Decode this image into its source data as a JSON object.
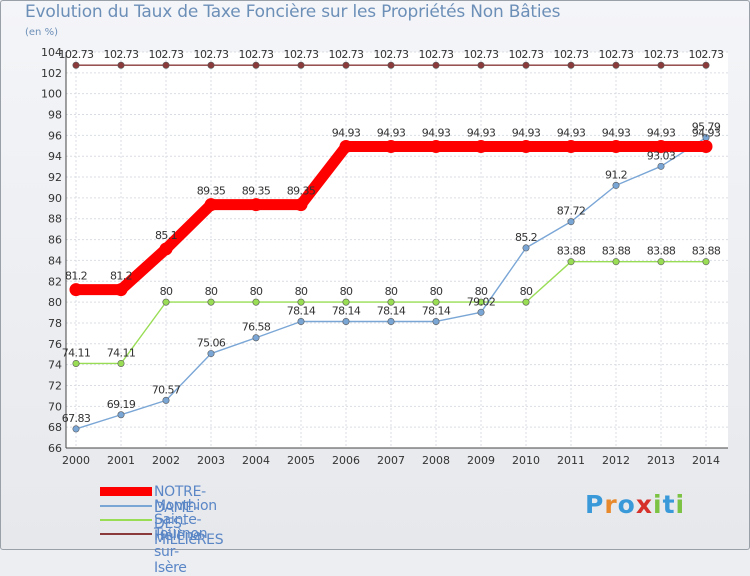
{
  "chart_data": {
    "type": "line",
    "title": "Evolution du Taux de Taxe Foncière sur les Propriétés Non Bâties",
    "subtitle": "(en %)",
    "xlabel": "",
    "ylabel": "",
    "categories": [
      "2000",
      "2001",
      "2002",
      "2003",
      "2004",
      "2005",
      "2006",
      "2007",
      "2008",
      "2009",
      "2010",
      "2011",
      "2012",
      "2013",
      "2014"
    ],
    "ylim": [
      66,
      104
    ],
    "ytick_step": 2,
    "grid": true,
    "legend_position": "bottom-left",
    "series": [
      {
        "name": "NOTRE-DAME-DES-MILLIèRES",
        "color": "#ff0000",
        "values": [
          81.2,
          81.2,
          85.1,
          89.35,
          89.35,
          89.35,
          94.93,
          94.93,
          94.93,
          94.93,
          94.93,
          94.93,
          94.93,
          94.93,
          94.93
        ],
        "labels": [
          "81.2",
          "81.2",
          "85.1",
          "89.35",
          "89.35",
          "89.35",
          "94.93",
          "94.93",
          "94.93",
          "94.93",
          "94.93",
          "94.93",
          "94.93",
          "94.93",
          "94.93"
        ]
      },
      {
        "name": "Monthion",
        "color": "#7aa6d6",
        "values": [
          67.83,
          69.19,
          70.57,
          75.06,
          76.58,
          78.14,
          78.14,
          78.14,
          78.14,
          79.02,
          85.2,
          87.72,
          91.2,
          93.03,
          95.79
        ],
        "labels": [
          "67.83",
          "69.19",
          "70.57",
          "75.06",
          "76.58",
          "78.14",
          "78.14",
          "78.14",
          "78.14",
          "79.02",
          "85.2",
          "87.72",
          "91.2",
          "93.03",
          "95.79"
        ]
      },
      {
        "name": "Sainte-Hélène-sur-Isère",
        "color": "#99dd55",
        "values": [
          74.11,
          74.11,
          80,
          80,
          80,
          80,
          80,
          80,
          80,
          80,
          80,
          83.88,
          83.88,
          83.88,
          83.88
        ],
        "labels": [
          "74.11",
          "74.11",
          "80",
          "80",
          "80",
          "80",
          "80",
          "80",
          "80",
          "80",
          "80",
          "83.88",
          "83.88",
          "83.88",
          "83.88"
        ]
      },
      {
        "name": "Tournon",
        "color": "#8a3a3a",
        "values": [
          102.73,
          102.73,
          102.73,
          102.73,
          102.73,
          102.73,
          102.73,
          102.73,
          102.73,
          102.73,
          102.73,
          102.73,
          102.73,
          102.73,
          102.73
        ],
        "labels": [
          "102.73",
          "102.73",
          "102.73",
          "102.73",
          "102.73",
          "102.73",
          "102.73",
          "102.73",
          "102.73",
          "102.73",
          "102.73",
          "102.73",
          "102.73",
          "102.73",
          "102.73"
        ]
      }
    ]
  },
  "brand": {
    "letters": [
      "P",
      "r",
      "o",
      "x",
      "i",
      "t",
      "i"
    ],
    "colors": [
      "#3a9ad9",
      "#e8892b",
      "#3a9ad9",
      "#d6312b",
      "#7cc243",
      "#3a9ad9",
      "#7cc243"
    ]
  }
}
